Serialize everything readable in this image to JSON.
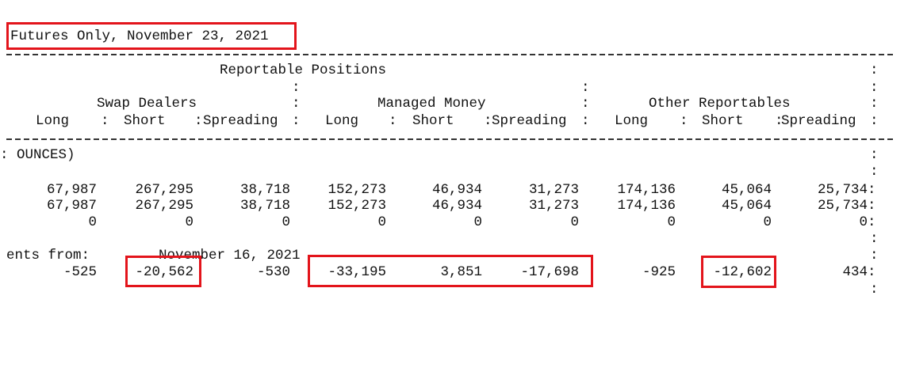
{
  "title": "Futures Only, November 23, 2021",
  "header": {
    "section": "Reportable Positions",
    "groups": [
      "Swap Dealers",
      "Managed Money",
      "Other Reportables"
    ],
    "columns": [
      "Long",
      "Short",
      "Spreading"
    ]
  },
  "units_label": ": OUNCES)",
  "rows": [
    [
      "67,987",
      "267,295",
      "38,718",
      "152,273",
      "46,934",
      "31,273",
      "174,136",
      "45,064",
      "25,734"
    ],
    [
      "67,987",
      "267,295",
      "38,718",
      "152,273",
      "46,934",
      "31,273",
      "174,136",
      "45,064",
      "25,734"
    ],
    [
      "0",
      "0",
      "0",
      "0",
      "0",
      "0",
      "0",
      "0",
      "0"
    ]
  ],
  "changes": {
    "label": "ents from:",
    "date": "November 16, 2021",
    "values": [
      "-525",
      "-20,562",
      "-530",
      "-33,195",
      "3,851",
      "-17,698",
      "-925",
      "-12,602",
      "434"
    ]
  },
  "highlight_color": "#e3141b"
}
